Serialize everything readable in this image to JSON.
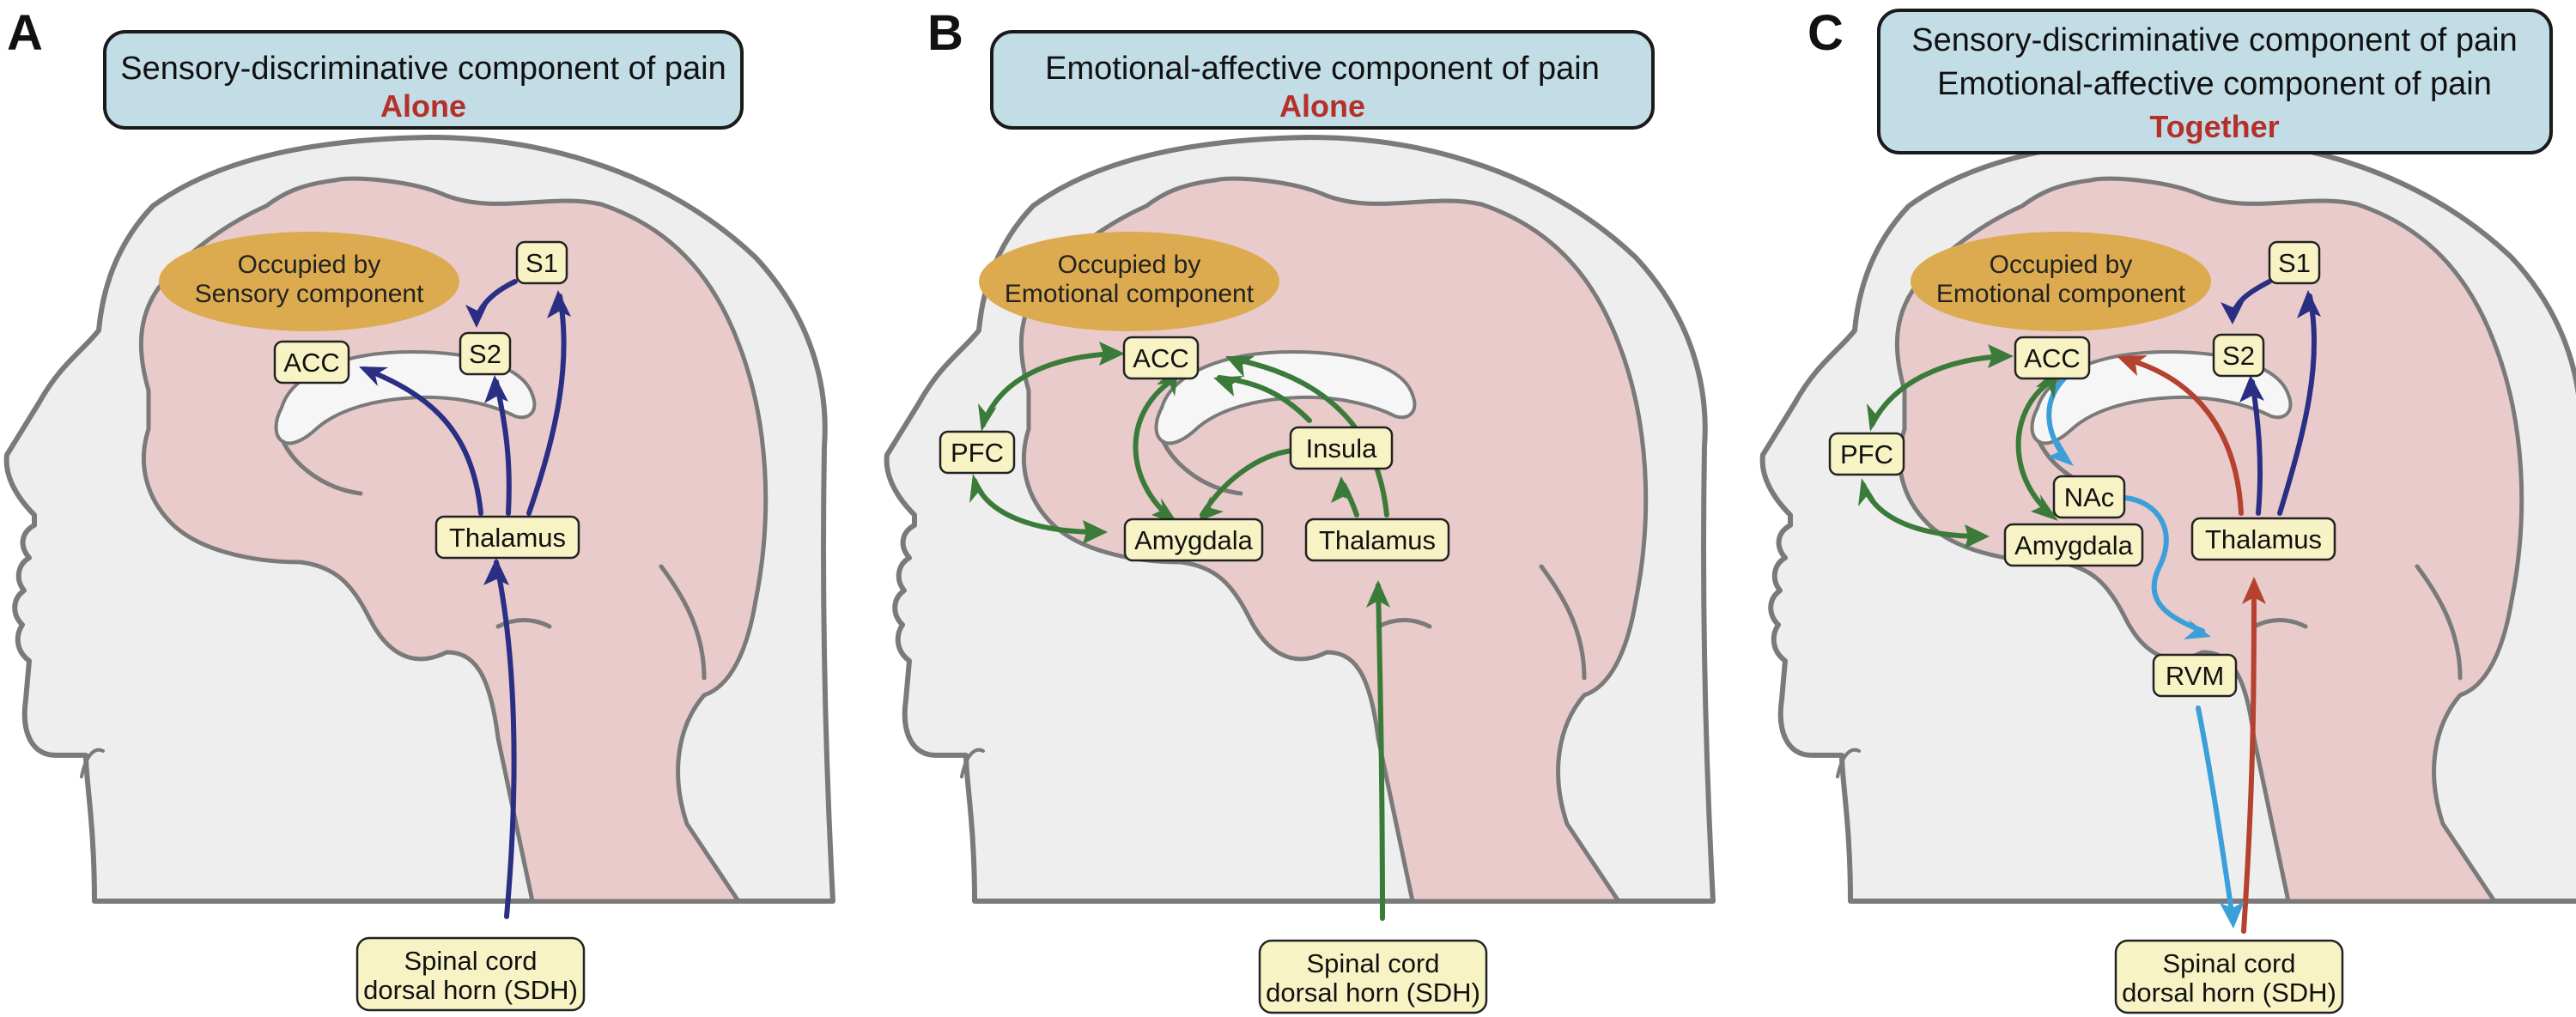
{
  "colors": {
    "sensory_pathway": "#2a2f84",
    "emotional_pathway": "#3b7b3a",
    "ascending_pathway": "#b5412e",
    "descending_pathway": "#3b9fd9",
    "emphasis_text": "#b5302a",
    "title_box": "#c3dde7",
    "node_box": "#f8f3c4",
    "occupied_ellipse": "#ddab4f",
    "brain": "#e8cbca",
    "head": "#eeeeee"
  },
  "panels": {
    "a": {
      "letter": "A",
      "title_lines": [
        "Sensory-discriminative component of pain"
      ],
      "emphasis": "Alone",
      "occupied": [
        "Occupied by",
        "Sensory component"
      ],
      "nodes": {
        "s1": "S1",
        "s2": "S2",
        "acc": "ACC",
        "thalamus": "Thalamus"
      },
      "sdh": [
        "Spinal cord",
        "dorsal horn (SDH)"
      ]
    },
    "b": {
      "letter": "B",
      "title_lines": [
        "Emotional-affective component of pain"
      ],
      "emphasis": "Alone",
      "occupied": [
        "Occupied by",
        "Emotional component"
      ],
      "nodes": {
        "acc": "ACC",
        "pfc": "PFC",
        "insula": "Insula",
        "amygdala": "Amygdala",
        "thalamus": "Thalamus"
      },
      "sdh": [
        "Spinal cord",
        "dorsal horn (SDH)"
      ]
    },
    "c": {
      "letter": "C",
      "title_lines": [
        "Sensory-discriminative component of pain",
        "Emotional-affective component of pain"
      ],
      "emphasis": "Together",
      "occupied": [
        "Occupied by",
        "Emotional component"
      ],
      "nodes": {
        "s1": "S1",
        "s2": "S2",
        "acc": "ACC",
        "pfc": "PFC",
        "nac": "NAc",
        "amygdala": "Amygdala",
        "thalamus": "Thalamus",
        "rvm": "RVM"
      },
      "sdh": [
        "Spinal cord",
        "dorsal horn (SDH)"
      ]
    }
  }
}
